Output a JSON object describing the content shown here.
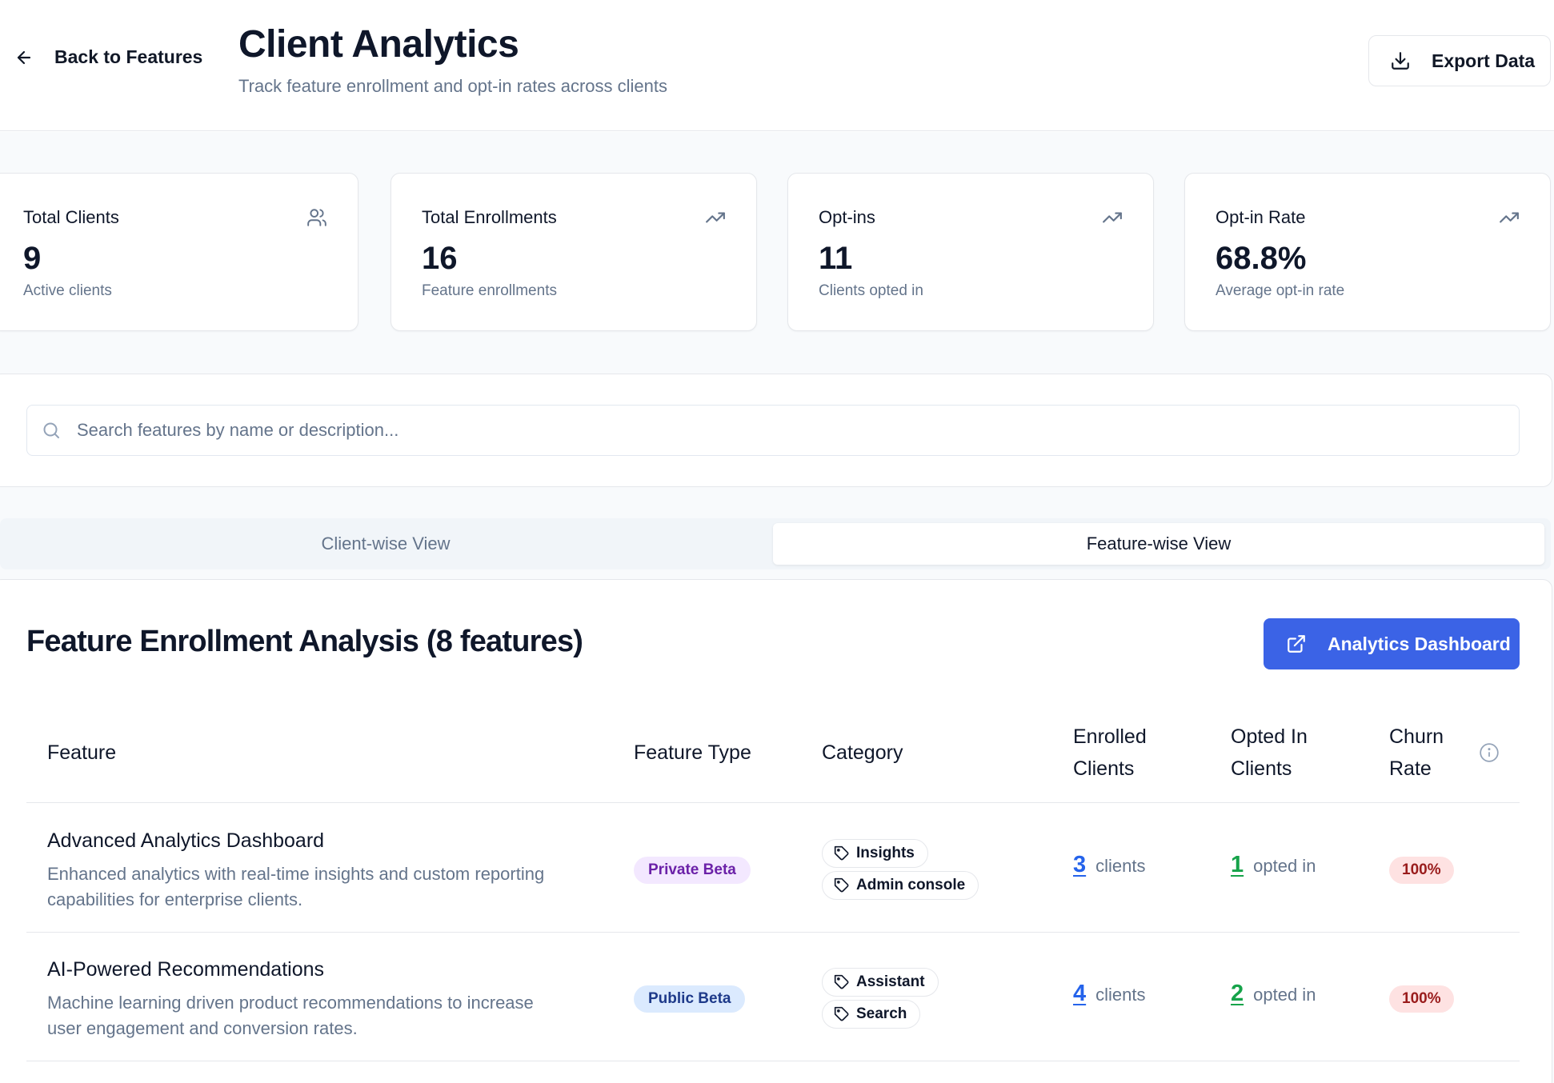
{
  "header": {
    "back_label": "Back to Features",
    "title": "Client Analytics",
    "subtitle": "Track feature enrollment and opt-in rates across clients",
    "export_label": "Export Data"
  },
  "stats": [
    {
      "label": "Total Clients",
      "value": "9",
      "desc": "Active clients",
      "icon": "users-icon"
    },
    {
      "label": "Total Enrollments",
      "value": "16",
      "desc": "Feature enrollments",
      "icon": "trending-up-icon"
    },
    {
      "label": "Opt-ins",
      "value": "11",
      "desc": "Clients opted in",
      "icon": "trending-up-icon"
    },
    {
      "label": "Opt-in Rate",
      "value": "68.8%",
      "desc": "Average opt-in rate",
      "icon": "trending-up-icon"
    }
  ],
  "search": {
    "placeholder": "Search features by name or description...",
    "value": ""
  },
  "tabs": [
    {
      "label": "Client-wise View",
      "active": false
    },
    {
      "label": "Feature-wise View",
      "active": true
    }
  ],
  "main": {
    "title": "Feature Enrollment Analysis (8 features)",
    "dashboard_label": "Analytics Dashboard"
  },
  "table": {
    "headers": {
      "feature": "Feature",
      "type": "Feature Type",
      "category": "Category",
      "enrolled_1": "Enrolled",
      "enrolled_2": "Clients",
      "opted_1": "Opted In",
      "opted_2": "Clients",
      "churn_1": "Churn",
      "churn_2": "Rate"
    },
    "rows": [
      {
        "name": "Advanced Analytics Dashboard",
        "desc_1": "Enhanced analytics with real-time insights and custom reporting",
        "desc_2": "capabilities for enterprise clients.",
        "type": "Private Beta",
        "tags": [
          "Insights",
          "Admin console"
        ],
        "enrolled": "3",
        "enrolled_unit": "clients",
        "opted": "1",
        "opted_unit": "opted in",
        "churn": "100%"
      },
      {
        "name": "AI-Powered Recommendations",
        "desc_1": "Machine learning driven product recommendations to increase",
        "desc_2": "user engagement and conversion rates.",
        "type": "Public Beta",
        "tags": [
          "Assistant",
          "Search"
        ],
        "enrolled": "4",
        "enrolled_unit": "clients",
        "opted": "2",
        "opted_unit": "opted in",
        "churn": "100%"
      }
    ]
  },
  "colors": {
    "primary": "#3b63e6",
    "link_blue": "#2563eb",
    "link_green": "#16a34a",
    "churn_bg": "#fee2e2",
    "private_bg": "#f3e8ff",
    "public_bg": "#dbeafe"
  }
}
